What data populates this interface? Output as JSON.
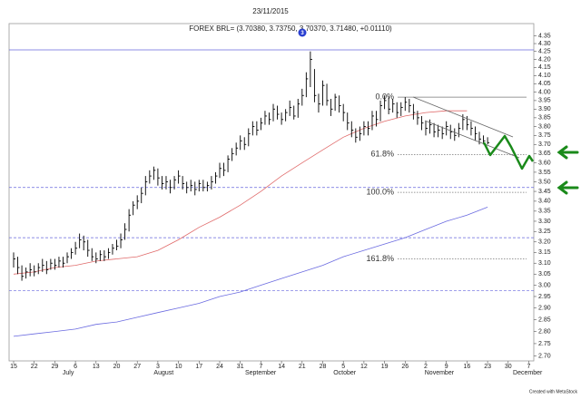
{
  "chart_data": {
    "type": "ohlc",
    "title": "23/11/2015",
    "header": "FOREX BRL= (3.70380, 3.73750, 3.70370, 3.71480, +0.01110)",
    "marker": "3",
    "credit": "Created with MetaStock",
    "log_scale": true,
    "color": "#000000",
    "ylim": [
      2.68,
      4.43
    ],
    "yticks": [
      {
        "value": 2.7,
        "label": "2.70"
      },
      2.75,
      {
        "value": 2.8,
        "label": "2.80"
      },
      2.85,
      {
        "value": 2.9,
        "label": "2.90"
      },
      2.95,
      {
        "value": 3,
        "label": "3.00"
      },
      3.05,
      {
        "value": 3.1,
        "label": "3.10"
      },
      3.15,
      {
        "value": 3.2,
        "label": "3.20"
      },
      3.25,
      {
        "value": 3.3,
        "label": "3.30"
      },
      3.35,
      {
        "value": 3.4,
        "label": "3.40"
      },
      3.45,
      {
        "value": 3.5,
        "label": "3.50"
      },
      3.55,
      {
        "value": 3.6,
        "label": "3.60"
      },
      3.65,
      {
        "value": 3.7,
        "label": "3.70"
      },
      3.75,
      {
        "value": 3.8,
        "label": "3.80"
      },
      3.85,
      {
        "value": 3.9,
        "label": "3.90"
      },
      3.95,
      {
        "value": 4,
        "label": "4.00"
      },
      4.05,
      {
        "value": 4.1,
        "label": "4.10"
      },
      4.15,
      {
        "value": 4.2,
        "label": "4.20"
      },
      4.25,
      {
        "value": 4.3,
        "label": "4.30"
      },
      4.35
    ],
    "week_labels": [
      "15",
      "22",
      "29",
      "6",
      "13",
      "20",
      "27",
      "3",
      "10",
      "17",
      "24",
      "31",
      "7",
      "14",
      "21",
      "28",
      "5",
      "12",
      "19",
      "26",
      "2",
      "9",
      "16",
      "23",
      "30",
      "7"
    ],
    "months": [
      "July",
      "August",
      "September",
      "October",
      "November",
      "December"
    ],
    "high": [
      3.15,
      3.13,
      3.09,
      3.08,
      3.1,
      3.09,
      3.1,
      3.12,
      3.11,
      3.12,
      3.12,
      3.13,
      3.13,
      3.15,
      3.17,
      3.2,
      3.24,
      3.23,
      3.21,
      3.17,
      3.15,
      3.16,
      3.16,
      3.17,
      3.19,
      3.21,
      3.24,
      3.29,
      3.36,
      3.4,
      3.43,
      3.47,
      3.53,
      3.56,
      3.58,
      3.57,
      3.53,
      3.53,
      3.51,
      3.53,
      3.56,
      3.53,
      3.5,
      3.51,
      3.5,
      3.51,
      3.51,
      3.5,
      3.53,
      3.55,
      3.6,
      3.6,
      3.64,
      3.68,
      3.71,
      3.75,
      3.74,
      3.79,
      3.83,
      3.83,
      3.85,
      3.89,
      3.88,
      3.93,
      3.92,
      3.88,
      3.9,
      3.95,
      3.92,
      3.96,
      4.02,
      4.12,
      4.25,
      4.14,
      3.99,
      4.07,
      4.05,
      3.96,
      3.99,
      3.98,
      3.93,
      3.88,
      3.83,
      3.79,
      3.8,
      3.83,
      3.83,
      3.89,
      3.89,
      3.95,
      3.98,
      3.97,
      3.96,
      3.94,
      3.94,
      3.97,
      3.96,
      3.93,
      3.89,
      3.86,
      3.83,
      3.84,
      3.82,
      3.81,
      3.8,
      3.83,
      3.81,
      3.79,
      3.82,
      3.87,
      3.86,
      3.83,
      3.8,
      3.77,
      3.75,
      3.74
    ],
    "low": [
      3.08,
      3.05,
      3.02,
      3.03,
      3.04,
      3.04,
      3.05,
      3.06,
      3.05,
      3.07,
      3.07,
      3.08,
      3.08,
      3.1,
      3.12,
      3.14,
      3.17,
      3.16,
      3.13,
      3.11,
      3.1,
      3.11,
      3.11,
      3.12,
      3.14,
      3.16,
      3.17,
      3.21,
      3.25,
      3.33,
      3.36,
      3.39,
      3.43,
      3.49,
      3.51,
      3.48,
      3.46,
      3.46,
      3.44,
      3.46,
      3.49,
      3.46,
      3.44,
      3.45,
      3.43,
      3.45,
      3.45,
      3.45,
      3.46,
      3.49,
      3.52,
      3.53,
      3.55,
      3.61,
      3.64,
      3.67,
      3.67,
      3.69,
      3.75,
      3.75,
      3.78,
      3.81,
      3.81,
      3.83,
      3.84,
      3.81,
      3.83,
      3.86,
      3.84,
      3.85,
      3.92,
      3.97,
      4.03,
      3.94,
      3.88,
      3.92,
      3.92,
      3.86,
      3.89,
      3.88,
      3.83,
      3.78,
      3.74,
      3.71,
      3.72,
      3.75,
      3.75,
      3.78,
      3.8,
      3.83,
      3.9,
      3.87,
      3.88,
      3.85,
      3.86,
      3.89,
      3.88,
      3.84,
      3.81,
      3.78,
      3.75,
      3.76,
      3.74,
      3.74,
      3.73,
      3.75,
      3.73,
      3.72,
      3.74,
      3.78,
      3.78,
      3.75,
      3.72,
      3.7,
      3.7,
      3.7
    ],
    "close": [
      3.12,
      3.08,
      3.04,
      3.06,
      3.07,
      3.06,
      3.08,
      3.09,
      3.07,
      3.1,
      3.09,
      3.11,
      3.1,
      3.13,
      3.15,
      3.17,
      3.21,
      3.2,
      3.16,
      3.13,
      3.12,
      3.14,
      3.13,
      3.15,
      3.17,
      3.18,
      3.21,
      3.26,
      3.33,
      3.38,
      3.4,
      3.44,
      3.5,
      3.53,
      3.56,
      3.52,
      3.49,
      3.5,
      3.47,
      3.51,
      3.53,
      3.49,
      3.47,
      3.48,
      3.46,
      3.49,
      3.47,
      3.48,
      3.5,
      3.53,
      3.57,
      3.56,
      3.62,
      3.65,
      3.68,
      3.72,
      3.7,
      3.76,
      3.8,
      3.78,
      3.82,
      3.86,
      3.84,
      3.9,
      3.87,
      3.84,
      3.88,
      3.91,
      3.86,
      3.93,
      3.98,
      4.08,
      4.2,
      3.98,
      3.93,
      4.04,
      3.95,
      3.9,
      3.97,
      3.92,
      3.88,
      3.82,
      3.78,
      3.74,
      3.76,
      3.8,
      3.79,
      3.86,
      3.84,
      3.92,
      3.95,
      3.9,
      3.93,
      3.88,
      3.91,
      3.94,
      3.92,
      3.88,
      3.85,
      3.82,
      3.79,
      3.81,
      3.77,
      3.78,
      3.76,
      3.8,
      3.77,
      3.75,
      3.79,
      3.84,
      3.81,
      3.79,
      3.76,
      3.73,
      3.72,
      3.71
    ],
    "moving_averages": [
      {
        "color": "#e06a6a",
        "values": [
          3.05,
          3.06,
          3.08,
          3.09,
          3.11,
          3.12,
          3.13,
          3.16,
          3.21,
          3.27,
          3.32,
          3.38,
          3.45,
          3.53,
          3.6,
          3.67,
          3.74,
          3.79,
          3.83,
          3.86,
          3.88,
          3.89,
          3.89,
          null,
          null,
          null
        ]
      },
      {
        "color": "#6a6ae0",
        "values": [
          2.78,
          2.79,
          2.8,
          2.81,
          2.83,
          2.84,
          2.86,
          2.88,
          2.9,
          2.92,
          2.95,
          2.97,
          3.0,
          3.03,
          3.06,
          3.09,
          3.13,
          3.16,
          3.19,
          3.22,
          3.26,
          3.3,
          3.33,
          3.37,
          null,
          null
        ]
      }
    ],
    "levels": [
      {
        "value": 4.26,
        "color": "#6666dd",
        "dashed": false
      },
      {
        "value": 3.47,
        "color": "#6666dd",
        "dashed": true
      },
      {
        "value": 3.22,
        "color": "#6666dd",
        "dashed": true
      },
      {
        "value": 2.975,
        "color": "#6666dd",
        "dashed": true
      }
    ],
    "fibonacci": [
      {
        "label": "0.0%",
        "value": 3.97
      },
      {
        "label": "61.8%",
        "value": 3.645
      },
      {
        "label": "100.0%",
        "value": 3.445
      },
      {
        "label": "161.8%",
        "value": 3.12
      }
    ]
  }
}
